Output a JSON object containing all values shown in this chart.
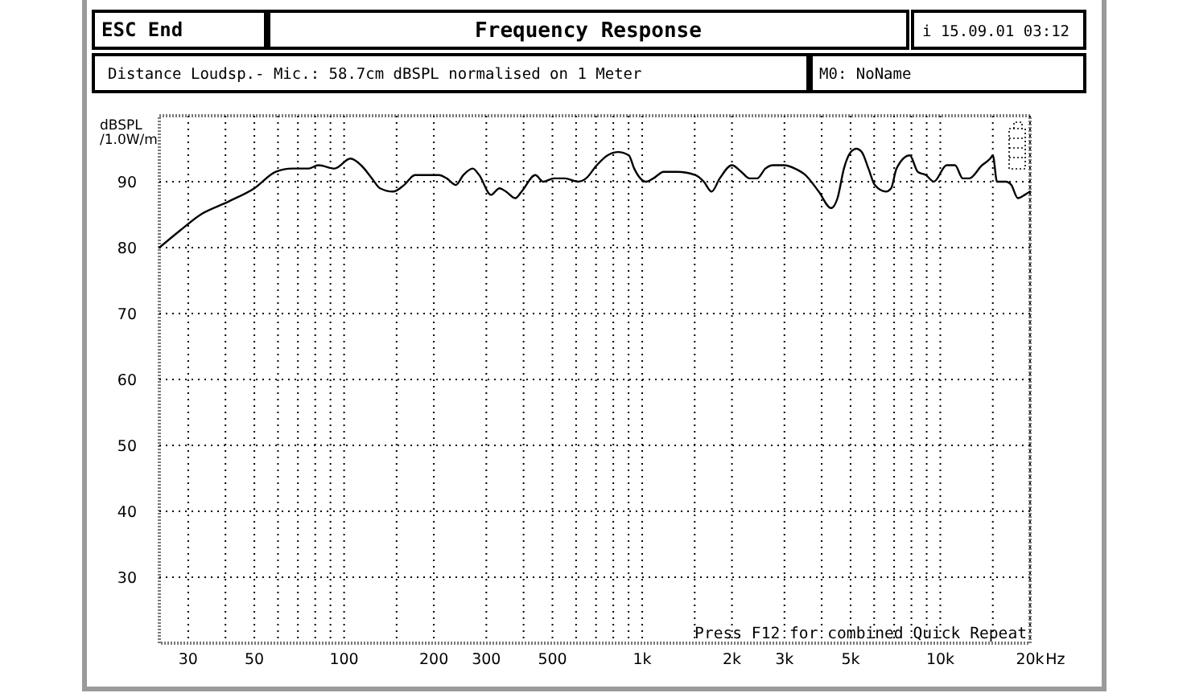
{
  "chart_data": {
    "type": "line",
    "title": "Frequency Response",
    "subtitle": "Distance Loudsp.- Mic.: 58.7cm dBSPL normalised on 1 Meter",
    "xlabel": "Hz",
    "ylabel": "dBSPL\n/1.0W/m",
    "annotations": [
      "ESC End",
      "i 15.09.01 03:12",
      "M0: NoName",
      "Press F12 for combined Quick Repeat"
    ],
    "x": [
      24,
      28,
      33,
      41,
      50,
      59,
      67,
      76,
      82,
      93,
      105,
      114,
      124,
      132,
      146,
      159,
      173,
      187,
      208,
      221,
      237,
      251,
      270,
      284,
      311,
      332,
      349,
      375,
      394,
      438,
      466,
      506,
      550,
      609,
      648,
      704,
      765,
      830,
      902,
      940,
      1030,
      1090,
      1180,
      1310,
      1510,
      1610,
      1710,
      1820,
      2000,
      2150,
      2290,
      2430,
      2590,
      2750,
      2990,
      3250,
      3530,
      3910,
      4300,
      4520,
      4750,
      5010,
      5230,
      5450,
      5740,
      6030,
      6560,
      6840,
      7130,
      7900,
      8400,
      8950,
      9510,
      10500,
      11200,
      11900,
      12500,
      13800,
      14700,
      15000,
      15500,
      16600,
      17300,
      18200,
      19200,
      20000
    ],
    "series": [
      {
        "color": "#000000",
        "values": [
          80,
          82.5,
          85,
          87,
          89,
          91.5,
          92,
          92,
          92.5,
          92,
          93.5,
          92.5,
          90.5,
          89,
          88.5,
          89.5,
          91,
          91,
          91,
          90.5,
          89.5,
          91,
          92,
          91,
          88,
          89,
          88.5,
          87.5,
          88.5,
          91,
          90,
          90.5,
          90.5,
          90,
          90.5,
          92.5,
          94,
          94.5,
          94,
          92,
          90,
          90.5,
          91.5,
          91.5,
          91,
          90,
          88.5,
          90.5,
          92.5,
          91.5,
          90.5,
          90.5,
          92,
          92.5,
          92.5,
          92,
          91,
          88.5,
          86,
          87.5,
          92,
          94.5,
          95,
          94.5,
          92,
          89.5,
          88.5,
          89,
          92,
          94,
          91.5,
          91,
          90,
          92.5,
          92.5,
          90.5,
          90.5,
          92.5,
          93.5,
          94,
          90,
          90,
          89.5,
          87.5,
          88,
          88.5
        ]
      }
    ],
    "log": "x",
    "xlim": [
      24,
      20000
    ],
    "xticks": [
      30,
      {
        "value": 40,
        "label": null
      },
      50,
      {
        "value": 60,
        "label": null
      },
      {
        "value": 70,
        "label": null
      },
      {
        "value": 80,
        "label": null
      },
      {
        "value": 90,
        "label": null
      },
      100,
      {
        "value": 150,
        "label": null
      },
      200,
      300,
      {
        "value": 400,
        "label": null
      },
      500,
      {
        "value": 600,
        "label": null
      },
      {
        "value": 700,
        "label": null
      },
      {
        "value": 800,
        "label": null
      },
      {
        "value": 900,
        "label": null
      },
      {
        "value": 1000,
        "label": "1k"
      },
      {
        "value": 1500,
        "label": null
      },
      {
        "value": 2000,
        "label": "2k"
      },
      {
        "value": 3000,
        "label": "3k"
      },
      {
        "value": 4000,
        "label": null
      },
      {
        "value": 5000,
        "label": "5k"
      },
      {
        "value": 6000,
        "label": null
      },
      {
        "value": 7000,
        "label": null
      },
      {
        "value": 8000,
        "label": null
      },
      {
        "value": 9000,
        "label": null
      },
      {
        "value": 10000,
        "label": "10k"
      },
      {
        "value": 15000,
        "label": null
      },
      {
        "value": 20000,
        "label": "20k"
      }
    ],
    "ylim": [
      20,
      100
    ],
    "yticks": [
      30,
      40,
      50,
      60,
      70,
      80,
      90
    ],
    "grid": true
  }
}
